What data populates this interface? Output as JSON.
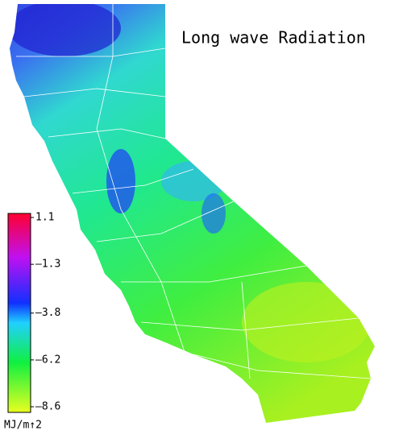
{
  "title": "Long wave Radiation",
  "colorbar": {
    "ticks": [
      {
        "value": 1.1,
        "label": "1.1"
      },
      {
        "value": -1.3,
        "label": "–1.3"
      },
      {
        "value": -3.8,
        "label": "–3.8"
      },
      {
        "value": -6.2,
        "label": "–6.2"
      },
      {
        "value": -8.6,
        "label": "–8.6"
      }
    ],
    "unit": "MJ/m↑2"
  }
}
